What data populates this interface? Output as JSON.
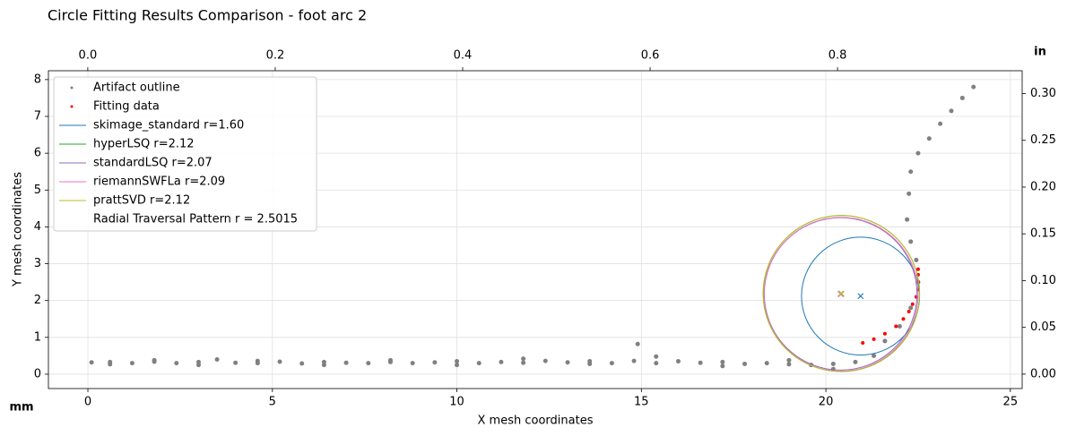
{
  "chart_data": {
    "type": "scatter",
    "title": "Circle Fitting Results Comparison - foot arc 2",
    "xlabel": "X mesh coordinates",
    "ylabel": "Y mesh coordinates",
    "x2label": "in",
    "y2label": "in",
    "unit_label": "mm",
    "xlim": [
      -1.07,
      25.32
    ],
    "ylim": [
      -0.39,
      8.24
    ],
    "xticks": [
      0,
      5,
      10,
      15,
      20,
      25
    ],
    "yticks": [
      0,
      1,
      2,
      3,
      4,
      5,
      6,
      7,
      8
    ],
    "x2lim": [
      -0.042,
      0.997
    ],
    "x2ticks": [
      {
        "value": 0,
        "label": "0.0"
      },
      {
        "value": 0.2,
        "label": "0.2"
      },
      {
        "value": 0.4,
        "label": "0.4"
      },
      {
        "value": 0.6,
        "label": "0.6"
      },
      {
        "value": 0.8,
        "label": "0.8"
      }
    ],
    "y2lim": [
      -0.0154,
      0.3244
    ],
    "y2ticks": [
      {
        "value": 0,
        "label": "0.00"
      },
      {
        "value": 0.05,
        "label": "0.05"
      },
      {
        "value": 0.1,
        "label": "0.10"
      },
      {
        "value": 0.15,
        "label": "0.15"
      },
      {
        "value": 0.2,
        "label": "0.20"
      },
      {
        "value": 0.25,
        "label": "0.25"
      },
      {
        "value": 0.3,
        "label": "0.30"
      }
    ],
    "grid": true,
    "legend": "upper left",
    "points": [
      {
        "name": "Artifact outline",
        "color": "#808080",
        "x": [
          0.1,
          0.6,
          1.2,
          1.8,
          2.4,
          3.0,
          3.5,
          4.0,
          4.6,
          5.2,
          5.8,
          6.4,
          7.0,
          7.6,
          8.2,
          8.8,
          9.4,
          10.0,
          10.6,
          11.2,
          11.8,
          12.4,
          13.0,
          13.6,
          14.2,
          14.8,
          15.4,
          16.0,
          16.6,
          17.2,
          17.8,
          18.4,
          19.0,
          19.6,
          20.2,
          20.8,
          21.3,
          0.6,
          1.8,
          3.0,
          4.6,
          6.4,
          8.2,
          10.0,
          11.8,
          13.6,
          14.9,
          15.4,
          17.2,
          19.0,
          20.2,
          21.6,
          22.0,
          22.3,
          22.5,
          22.45,
          22.3,
          22.2,
          22.25,
          22.3,
          22.5,
          22.8,
          23.1,
          23.4,
          23.7,
          24.0
        ],
        "y": [
          0.32,
          0.33,
          0.3,
          0.34,
          0.3,
          0.33,
          0.4,
          0.31,
          0.3,
          0.34,
          0.29,
          0.33,
          0.31,
          0.3,
          0.33,
          0.3,
          0.32,
          0.35,
          0.3,
          0.33,
          0.31,
          0.36,
          0.32,
          0.35,
          0.3,
          0.36,
          0.3,
          0.35,
          0.31,
          0.33,
          0.28,
          0.3,
          0.27,
          0.25,
          0.28,
          0.33,
          0.5,
          0.27,
          0.38,
          0.25,
          0.36,
          0.25,
          0.38,
          0.25,
          0.42,
          0.28,
          0.82,
          0.48,
          0.22,
          0.38,
          0.14,
          0.9,
          1.3,
          1.8,
          2.5,
          3.1,
          3.6,
          4.2,
          4.9,
          5.5,
          6.0,
          6.4,
          6.8,
          7.15,
          7.5,
          7.8
        ]
      },
      {
        "name": "Fitting data",
        "color": "#ff0000",
        "x": [
          21.0,
          21.3,
          21.6,
          21.9,
          22.1,
          22.25,
          22.35,
          22.45,
          22.5,
          22.5,
          22.5,
          22.5
        ],
        "y": [
          0.85,
          0.95,
          1.1,
          1.3,
          1.5,
          1.7,
          1.9,
          2.1,
          2.3,
          2.5,
          2.7,
          2.85
        ]
      }
    ],
    "circles": [
      {
        "name": "skimage_standard r=1.60",
        "color": "#1f77b4",
        "cx": 20.94,
        "cy": 2.12,
        "r": 1.6
      },
      {
        "name": "hyperLSQ r=2.12",
        "color": "#2ca02c",
        "cx": 20.42,
        "cy": 2.19,
        "r": 2.12
      },
      {
        "name": "standardLSQ r=2.07",
        "color": "#9467bd",
        "cx": 20.4,
        "cy": 2.18,
        "r": 2.07
      },
      {
        "name": "riemannSWFLa r=2.09",
        "color": "#e377c2",
        "cx": 20.41,
        "cy": 2.17,
        "r": 2.09
      },
      {
        "name": "prattSVD r=2.12",
        "color": "#bcbd22",
        "cx": 20.42,
        "cy": 2.19,
        "r": 2.12
      }
    ],
    "legend_note": "Radial Traversal Pattern r = 2.5015"
  }
}
